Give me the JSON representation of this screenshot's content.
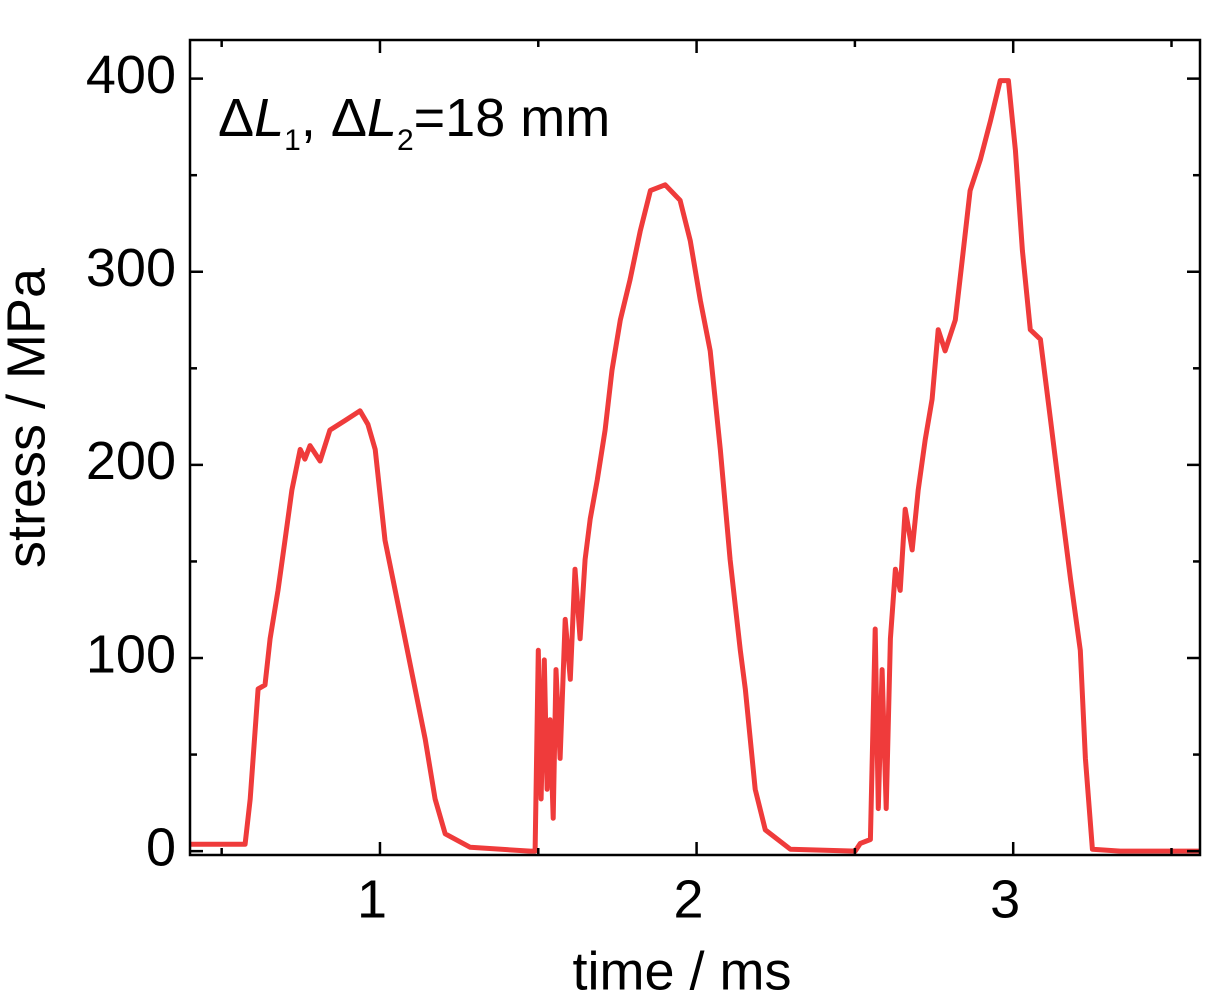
{
  "chart_data": {
    "type": "line",
    "xlabel": "time / ms",
    "ylabel": "stress / MPa",
    "annotation": [
      "Δ",
      "L",
      "1",
      ", Δ",
      "L",
      "2",
      "=18 mm"
    ],
    "xlim": [
      0.4,
      3.59
    ],
    "ylim": [
      -2,
      420
    ],
    "xticks": [
      1,
      2,
      3
    ],
    "yticks": [
      0,
      100,
      200,
      300,
      400
    ],
    "xminorticks": [
      0.5,
      1.5,
      2.5,
      3.5
    ],
    "yminorticks": [
      50,
      150,
      250,
      350
    ],
    "x": [
      0.4,
      0.574,
      0.59,
      0.615,
      0.637,
      0.653,
      0.678,
      0.7,
      0.722,
      0.748,
      0.763,
      0.779,
      0.811,
      0.842,
      0.89,
      0.937,
      0.962,
      0.985,
      1.016,
      1.048,
      1.079,
      1.111,
      1.143,
      1.174,
      1.206,
      1.285,
      1.474,
      1.49,
      1.5,
      1.509,
      1.519,
      1.528,
      1.537,
      1.547,
      1.556,
      1.569,
      1.585,
      1.601,
      1.616,
      1.632,
      1.648,
      1.664,
      1.686,
      1.711,
      1.733,
      1.759,
      1.79,
      1.822,
      1.854,
      1.901,
      1.948,
      1.98,
      2.012,
      2.043,
      2.075,
      2.106,
      2.138,
      2.154,
      2.185,
      2.217,
      2.296,
      2.501,
      2.517,
      2.549,
      2.564,
      2.574,
      2.586,
      2.599,
      2.612,
      2.628,
      2.643,
      2.659,
      2.681,
      2.7,
      2.722,
      2.744,
      2.763,
      2.785,
      2.817,
      2.839,
      2.864,
      2.896,
      2.928,
      2.959,
      2.985,
      3.007,
      3.029,
      3.054,
      3.086,
      3.118,
      3.149,
      3.181,
      3.212,
      3.228,
      3.25,
      3.338,
      3.59
    ],
    "series": [
      {
        "name": "stress",
        "color": "#ef3b3b",
        "values": [
          3.6,
          3.6,
          27,
          84,
          86,
          110,
          135,
          161,
          187,
          208,
          203,
          210,
          202,
          218,
          223,
          228,
          221,
          208,
          161,
          135,
          110,
          84,
          58,
          27,
          9,
          2,
          0,
          0,
          104,
          27,
          99,
          32,
          68,
          17,
          94,
          48,
          120,
          89,
          146,
          110,
          151,
          172,
          192,
          218,
          249,
          275,
          296,
          321,
          342,
          345,
          337,
          316,
          285,
          259,
          208,
          151,
          104,
          84,
          32,
          11,
          1,
          0,
          4,
          6,
          115,
          22,
          94,
          22,
          110,
          146,
          135,
          177,
          156,
          187,
          213,
          234,
          270,
          259,
          275,
          306,
          342,
          358,
          378,
          399,
          399,
          363,
          311,
          270,
          265,
          223,
          182,
          141,
          104,
          48,
          1,
          0,
          0
        ]
      }
    ]
  }
}
